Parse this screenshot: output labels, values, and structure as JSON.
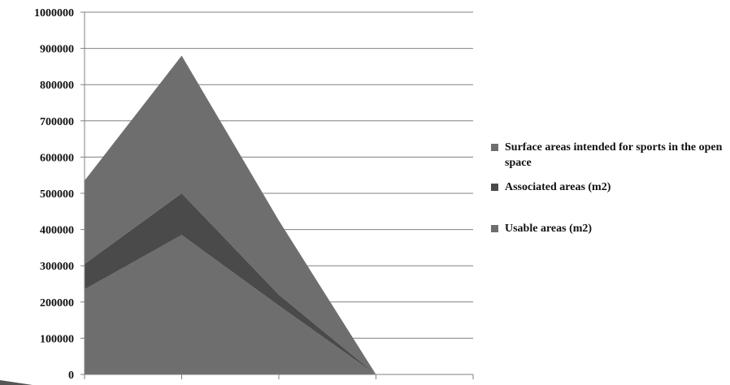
{
  "chart_data": {
    "type": "area",
    "stacked": true,
    "categories": [
      "",
      "",
      "",
      ""
    ],
    "series": [
      {
        "name": "Usable areas (m2)",
        "values": [
          235000,
          385000,
          190000,
          0
        ],
        "color": "#6e6e6e"
      },
      {
        "name": "Associated areas (m2)",
        "values": [
          70000,
          115000,
          30000,
          0
        ],
        "color": "#4a4a4a"
      },
      {
        "name": "Surface areas intended for sports in the open space",
        "values": [
          230000,
          380000,
          205000,
          0
        ],
        "color": "#6e6e6e"
      }
    ],
    "ylim": [
      0,
      1000000
    ],
    "y_ticks": [
      "0",
      "100000",
      "200000",
      "300000",
      "400000",
      "500000",
      "600000",
      "700000",
      "800000",
      "900000",
      "1000000"
    ],
    "grid": true,
    "legend_position": "right",
    "title": "",
    "xlabel": "",
    "ylabel": ""
  },
  "legend": {
    "items": [
      {
        "label": "Surface areas intended for sports in the open space",
        "color": "#6e6e6e"
      },
      {
        "label": "Associated areas (m2)",
        "color": "#4a4a4a"
      },
      {
        "label": "Usable areas (m2)",
        "color": "#6e6e6e"
      }
    ]
  }
}
